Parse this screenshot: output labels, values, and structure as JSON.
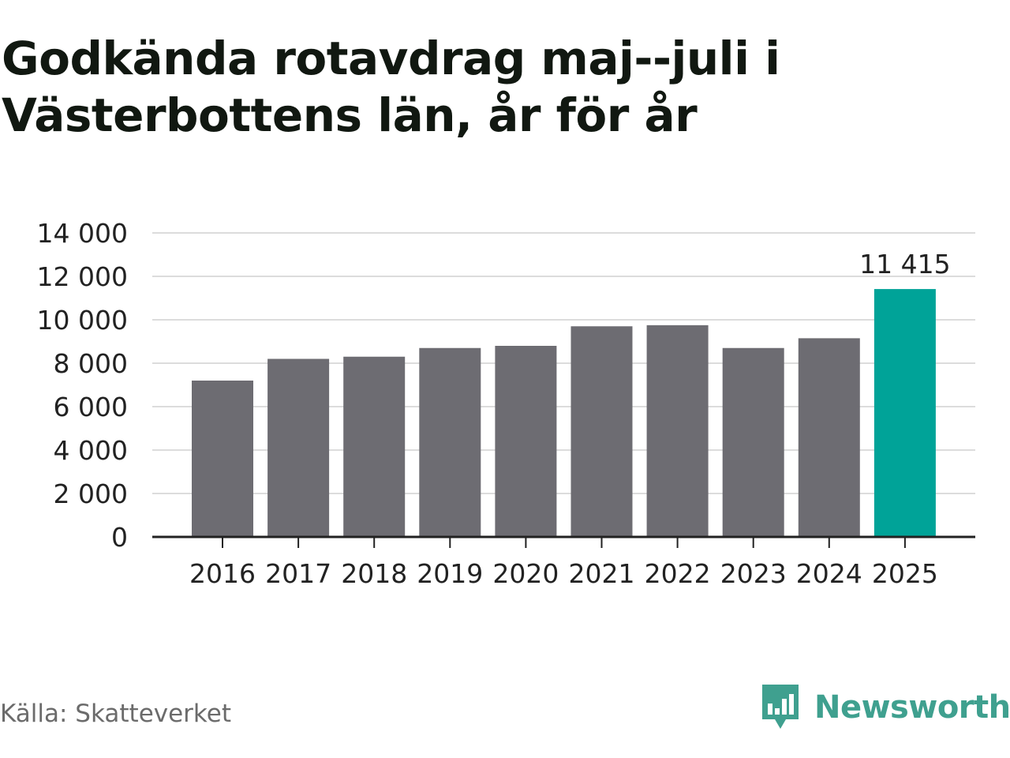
{
  "title": "Godkända rotavdrag maj--juli i Västerbottens län, år för år",
  "source": "Källa: Skatteverket",
  "brand": {
    "name": "Newsworthy",
    "logo_icon": "newsworthy-bar-chart-speech-bubble-icon",
    "color": "#3fa08f"
  },
  "colors": {
    "bar": "#6d6c72",
    "highlight": "#00a398",
    "grid": "#dcdcdc",
    "axis": "#222222",
    "text": "#222222"
  },
  "chart_data": {
    "type": "bar",
    "categories": [
      "2016",
      "2017",
      "2018",
      "2019",
      "2020",
      "2021",
      "2022",
      "2023",
      "2024",
      "2025"
    ],
    "values": [
      7200,
      8200,
      8300,
      8700,
      8800,
      9700,
      9750,
      8700,
      9150,
      11415
    ],
    "highlight_index": 9,
    "data_labels": [
      {
        "index": 9,
        "text": "11 415"
      }
    ],
    "y_ticks": [
      0,
      2000,
      4000,
      6000,
      8000,
      10000,
      12000,
      14000
    ],
    "y_tick_labels": [
      "0",
      "2 000",
      "4 000",
      "6 000",
      "8 000",
      "10 000",
      "12 000",
      "14 000"
    ],
    "ylim": [
      0,
      14000
    ],
    "grid": true,
    "legend": "none",
    "xlabel": "",
    "ylabel": ""
  }
}
